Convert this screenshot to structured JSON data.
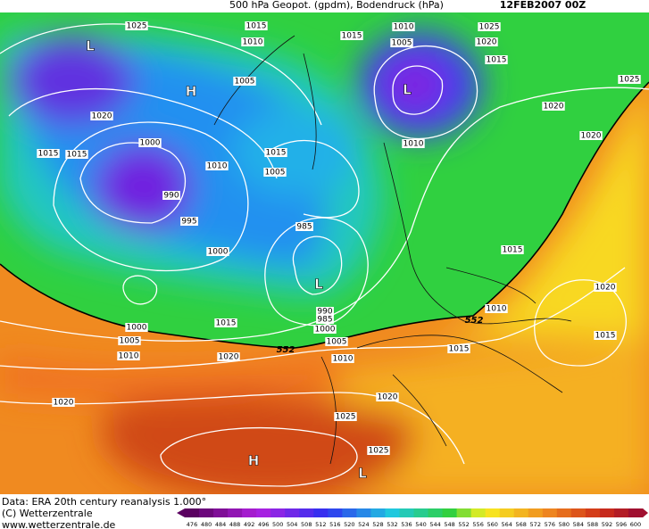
{
  "header": {
    "title": "500 hPa Geopot. (gpdm), Bodendruck (hPa)",
    "date": "12FEB2007 00Z"
  },
  "isobar_labels": [
    "1025",
    "1015",
    "1010",
    "1015",
    "1010",
    "1005",
    "1025",
    "1020",
    "1015",
    "1025",
    "1005",
    "1020",
    "1020",
    "1020",
    "1000",
    "1010",
    "1015",
    "1015",
    "1015",
    "1010",
    "1005",
    "990",
    "995",
    "985",
    "1000",
    "1015",
    "1020",
    "990",
    "985",
    "1000",
    "1010",
    "1000",
    "1015",
    "1005",
    "1005",
    "1015",
    "1010",
    "1020",
    "1010",
    "1015",
    "1020",
    "1020",
    "1025",
    "1025"
  ],
  "pressure_centers": [
    "L",
    "H",
    "L",
    "L",
    "H",
    "L"
  ],
  "contour_labels": [
    "552",
    "552"
  ],
  "footer": {
    "source": "Data: ERA 20th century reanalysis 1.000°",
    "copyright": "(C) Wetterzentrale",
    "url": "www.wetterzentrale.de"
  },
  "color_scale": {
    "ticks": [
      476,
      480,
      484,
      488,
      492,
      496,
      500,
      504,
      508,
      512,
      516,
      520,
      524,
      528,
      532,
      536,
      540,
      544,
      548,
      552,
      556,
      560,
      564,
      568,
      572,
      576,
      580,
      584,
      588,
      592,
      596,
      600
    ]
  }
}
